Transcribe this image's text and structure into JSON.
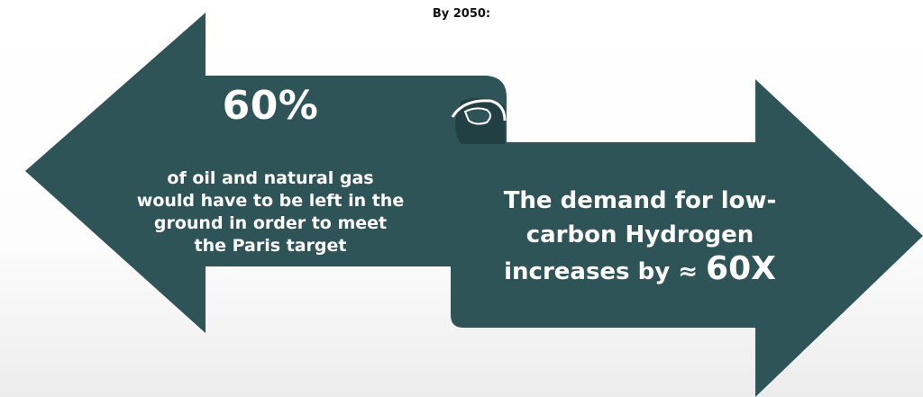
{
  "heading": "By 2050:",
  "left_arrow": {
    "stat": "60%",
    "lines": [
      "of oil and natural gas",
      "would have to be left in the",
      "ground in order to meet",
      "the Paris target"
    ]
  },
  "right_arrow": {
    "line1": "The demand for low-",
    "line2": "carbon Hydrogen",
    "line3_prefix": "increases by ≈ ",
    "line3_value": "60X"
  },
  "colors": {
    "arrow_fill": "#2f5458",
    "arrow_fold": "#234246",
    "text": "#ffffff",
    "heading": "#111111"
  }
}
